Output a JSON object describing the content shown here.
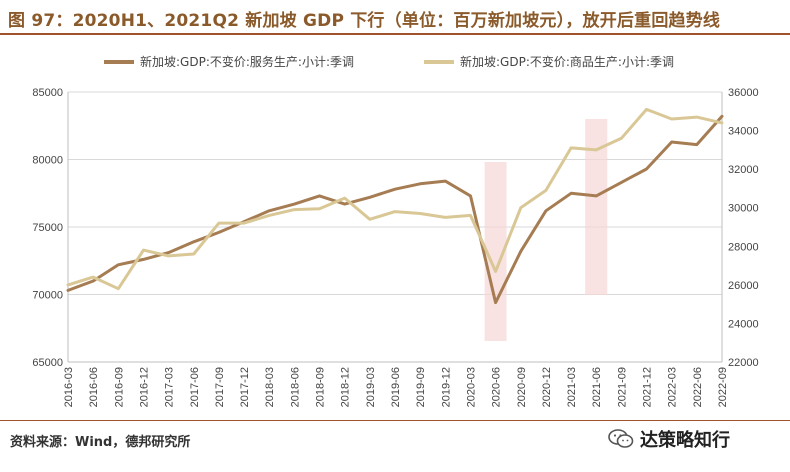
{
  "title": "图 97：2020H1、2021Q2 新加坡 GDP 下行（单位：百万新加坡元），放开后重回趋势线",
  "source": "资料来源：Wind，德邦研究所",
  "brand": "达策略知行",
  "chart_data": {
    "type": "line",
    "categories": [
      "2016-03",
      "2016-06",
      "2016-09",
      "2016-12",
      "2017-03",
      "2017-06",
      "2017-09",
      "2017-12",
      "2018-03",
      "2018-06",
      "2018-09",
      "2018-12",
      "2019-03",
      "2019-06",
      "2019-09",
      "2019-12",
      "2020-03",
      "2020-06",
      "2020-09",
      "2020-12",
      "2021-03",
      "2021-06",
      "2021-09",
      "2021-12",
      "2022-03",
      "2022-06",
      "2022-09"
    ],
    "series": [
      {
        "name": "新加坡:GDP:不变价:服务生产:小计:季调",
        "axis": "left",
        "color": "#A67C52",
        "values": [
          70300,
          71000,
          72200,
          72600,
          73100,
          73900,
          74600,
          75400,
          76200,
          76700,
          77300,
          76700,
          77200,
          77800,
          78200,
          78400,
          77300,
          69400,
          73200,
          76200,
          77500,
          77300,
          78300,
          79300,
          81300,
          81100,
          83200
        ]
      },
      {
        "name": "新加坡:GDP:不变价:商品生产:小计:季调",
        "axis": "right",
        "color": "#D9C796",
        "values": [
          26000,
          26400,
          25800,
          27800,
          27500,
          27600,
          29200,
          29200,
          29600,
          29900,
          29950,
          30500,
          29400,
          29800,
          29700,
          29500,
          29600,
          26700,
          30000,
          30900,
          33100,
          33000,
          33600,
          35100,
          34600,
          34700,
          34400
        ]
      }
    ],
    "y_left": {
      "min": 65000,
      "max": 85000,
      "ticks": [
        65000,
        70000,
        75000,
        80000,
        85000
      ]
    },
    "y_right": {
      "min": 22000,
      "max": 36000,
      "ticks": [
        22000,
        24000,
        26000,
        28000,
        30000,
        32000,
        34000,
        36000
      ]
    },
    "shaded_periods": [
      "2020-06",
      "2021-06"
    ],
    "grid": "horizontal",
    "legend_position": "top"
  }
}
